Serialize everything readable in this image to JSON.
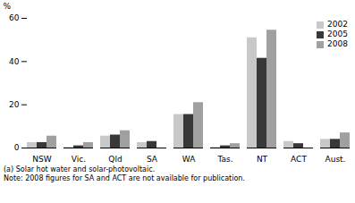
{
  "chart_data": {
    "type": "bar",
    "categories": [
      "NSW",
      "Vic.",
      "Qld",
      "SA",
      "WA",
      "Tas.",
      "NT",
      "ACT",
      "Aust."
    ],
    "series": [
      {
        "name": "2002",
        "color": "#c8c8c8",
        "values": [
          2.5,
          0.3,
          5.5,
          2.5,
          15.5,
          0.3,
          51.0,
          3.0,
          4.0
        ]
      },
      {
        "name": "2005",
        "color": "#383838",
        "values": [
          2.5,
          1.0,
          6.0,
          3.0,
          15.5,
          1.0,
          41.5,
          2.0,
          4.0
        ]
      },
      {
        "name": "2008",
        "color": "#a0a0a0",
        "values": [
          5.5,
          2.5,
          8.0,
          null,
          21.0,
          2.0,
          54.5,
          null,
          7.0
        ]
      }
    ],
    "ylabel": "%",
    "ylim": [
      0,
      60
    ],
    "yticks": [
      0,
      20,
      40,
      60
    ],
    "legend": "upper right",
    "annotations": [
      "(a) Solar hot water and solar-photovoltaic.",
      "Note:  2008 figures for SA and ACT are not available for publication."
    ]
  }
}
